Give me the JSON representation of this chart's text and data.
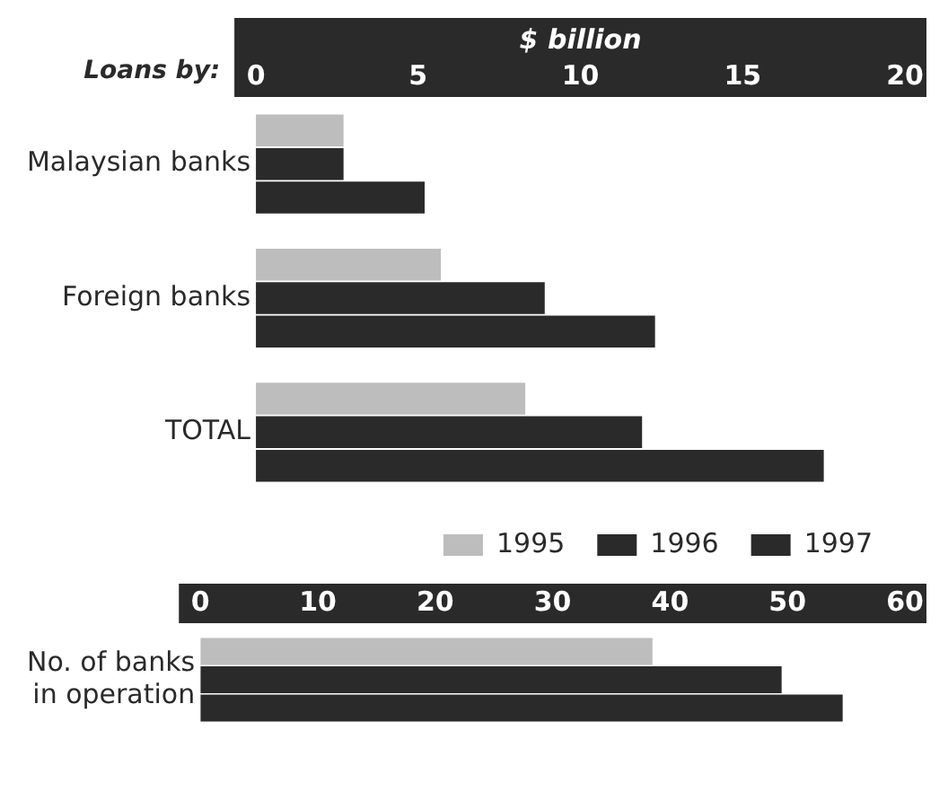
{
  "chart_data": [
    {
      "type": "bar",
      "orientation": "horizontal",
      "xlabel": "$ billion",
      "ylabel": "Loans by:",
      "categories": [
        "Malaysian banks",
        "Foreign banks",
        "TOTAL"
      ],
      "series": [
        {
          "name": "1995",
          "color": "#bdbdbd",
          "values": [
            2.7,
            5.7,
            8.3
          ]
        },
        {
          "name": "1996",
          "color": "#2a2a2a",
          "values": [
            2.7,
            8.9,
            11.9
          ]
        },
        {
          "name": "1997",
          "color": "#2a2a2a",
          "values": [
            5.2,
            12.3,
            17.5
          ]
        }
      ],
      "xlim": [
        0,
        20
      ],
      "xticks": [
        0,
        5,
        10,
        15,
        20
      ],
      "grid": false,
      "legend": "bottom"
    },
    {
      "type": "bar",
      "orientation": "horizontal",
      "categories": [
        "No. of banks\nin operation"
      ],
      "series": [
        {
          "name": "1995",
          "color": "#bdbdbd",
          "values": [
            38.5
          ]
        },
        {
          "name": "1996",
          "color": "#2a2a2a",
          "values": [
            49.5
          ]
        },
        {
          "name": "1997",
          "color": "#2a2a2a",
          "values": [
            54.7
          ]
        }
      ],
      "xlim": [
        0,
        60
      ],
      "xticks": [
        0,
        10,
        20,
        30,
        40,
        50,
        60
      ],
      "grid": false,
      "legend": false
    }
  ]
}
